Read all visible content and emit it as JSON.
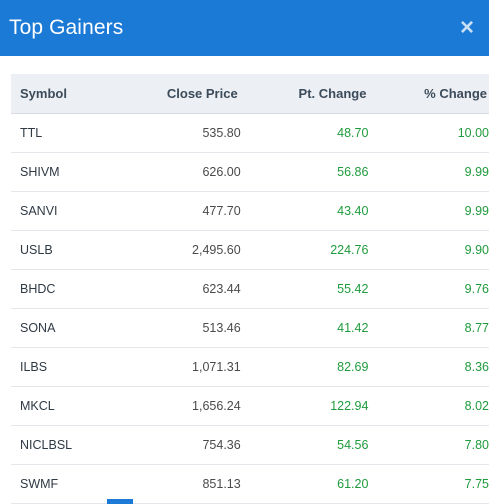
{
  "modal": {
    "title": "Top Gainers",
    "close_label": "×"
  },
  "table": {
    "headers": {
      "symbol": "Symbol",
      "close_price": "Close Price",
      "pt_change": "Pt. Change",
      "pct_change": "% Change"
    },
    "rows": [
      {
        "symbol": "TTL",
        "close_price": "535.80",
        "pt_change": "48.70",
        "pct_change": "10.00"
      },
      {
        "symbol": "SHIVM",
        "close_price": "626.00",
        "pt_change": "56.86",
        "pct_change": "9.99"
      },
      {
        "symbol": "SANVI",
        "close_price": "477.70",
        "pt_change": "43.40",
        "pct_change": "9.99"
      },
      {
        "symbol": "USLB",
        "close_price": "2,495.60",
        "pt_change": "224.76",
        "pct_change": "9.90"
      },
      {
        "symbol": "BHDC",
        "close_price": "623.44",
        "pt_change": "55.42",
        "pct_change": "9.76"
      },
      {
        "symbol": "SONA",
        "close_price": "513.46",
        "pt_change": "41.42",
        "pct_change": "8.77"
      },
      {
        "symbol": "ILBS",
        "close_price": "1,071.31",
        "pt_change": "82.69",
        "pct_change": "8.36"
      },
      {
        "symbol": "MKCL",
        "close_price": "1,656.24",
        "pt_change": "122.94",
        "pct_change": "8.02"
      },
      {
        "symbol": "NICLBSL",
        "close_price": "754.36",
        "pt_change": "54.56",
        "pct_change": "7.80"
      },
      {
        "symbol": "SWMF",
        "close_price": "851.13",
        "pt_change": "61.20",
        "pct_change": "7.75"
      }
    ]
  },
  "colors": {
    "header_bg": "#1a7ad6",
    "positive": "#1f9b3d",
    "table_head_bg": "#eceff3"
  }
}
